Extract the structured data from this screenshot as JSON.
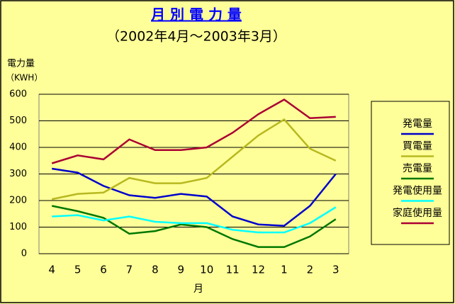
{
  "chart_data": {
    "type": "line",
    "title": "月 別 電 力 量",
    "subtitle": "（2002年4月～2003年3月）",
    "y_label": [
      "電力量",
      "（KWH）"
    ],
    "x_label": "月",
    "categories": [
      "4",
      "5",
      "6",
      "7",
      "8",
      "9",
      "10",
      "11",
      "12",
      "1",
      "2",
      "3"
    ],
    "series": [
      {
        "name": "発電量",
        "color": "#0000cc",
        "values": [
          320,
          305,
          255,
          220,
          210,
          225,
          215,
          140,
          110,
          105,
          180,
          300
        ]
      },
      {
        "name": "買電量",
        "color": "#b8b820",
        "values": [
          205,
          225,
          230,
          285,
          265,
          265,
          285,
          365,
          445,
          505,
          395,
          350
        ]
      },
      {
        "name": "売電量",
        "color": "#007700",
        "values": [
          180,
          160,
          135,
          75,
          85,
          110,
          100,
          55,
          25,
          25,
          65,
          130
        ]
      },
      {
        "name": "発電使用量",
        "color": "#00ffff",
        "values": [
          140,
          145,
          125,
          140,
          120,
          115,
          115,
          90,
          80,
          80,
          115,
          175
        ]
      },
      {
        "name": "家庭使用量",
        "color": "#aa0033",
        "values": [
          340,
          370,
          355,
          430,
          390,
          390,
          400,
          455,
          525,
          580,
          510,
          515
        ]
      }
    ],
    "ylim": [
      0,
      600
    ],
    "yticks": [
      0,
      100,
      200,
      300,
      400,
      500,
      600
    ],
    "grid": true
  }
}
